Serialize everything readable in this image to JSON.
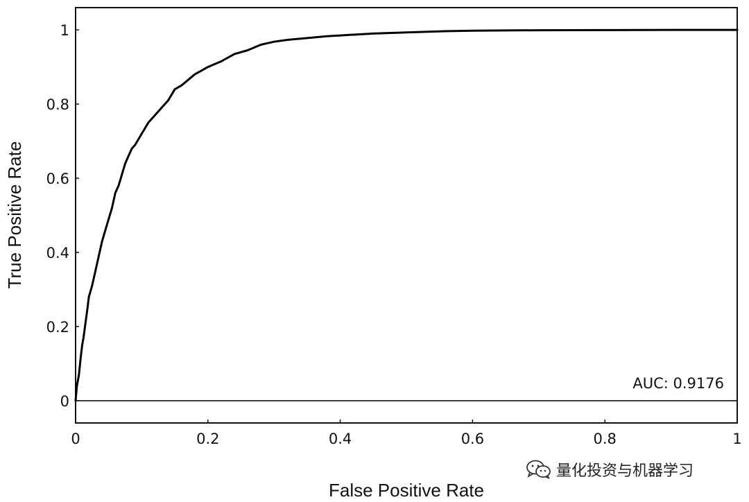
{
  "chart_data": {
    "type": "line",
    "xlabel": "False Positive Rate",
    "ylabel": "True Positive Rate",
    "xlim": [
      0,
      1
    ],
    "ylim": [
      -0.06,
      1.06
    ],
    "x_ticks": [
      0,
      0.2,
      0.4,
      0.6,
      0.8,
      1
    ],
    "y_ticks": [
      0,
      0.2,
      0.4,
      0.6,
      0.8,
      1
    ],
    "x_tick_labels": [
      "0",
      "0.2",
      "0.4",
      "0.6",
      "0.8",
      "1"
    ],
    "y_tick_labels": [
      "0",
      "0.2",
      "0.4",
      "0.6",
      "0.8",
      "1"
    ],
    "grid": false,
    "reference_line": {
      "y": 0
    },
    "annotation": "AUC: 0.9176",
    "series": [
      {
        "color": "#000000",
        "x": [
          0,
          0.002,
          0.005,
          0.008,
          0.01,
          0.012,
          0.015,
          0.018,
          0.02,
          0.025,
          0.03,
          0.035,
          0.04,
          0.045,
          0.05,
          0.055,
          0.06,
          0.065,
          0.07,
          0.075,
          0.08,
          0.085,
          0.09,
          0.1,
          0.11,
          0.12,
          0.13,
          0.14,
          0.15,
          0.16,
          0.17,
          0.18,
          0.19,
          0.2,
          0.22,
          0.24,
          0.26,
          0.28,
          0.3,
          0.32,
          0.35,
          0.38,
          0.4,
          0.45,
          0.5,
          0.55,
          0.6,
          0.7,
          0.8,
          0.9,
          1.0
        ],
        "y": [
          0,
          0.04,
          0.07,
          0.12,
          0.15,
          0.17,
          0.21,
          0.25,
          0.28,
          0.31,
          0.35,
          0.39,
          0.43,
          0.46,
          0.49,
          0.52,
          0.56,
          0.58,
          0.61,
          0.64,
          0.66,
          0.68,
          0.69,
          0.72,
          0.75,
          0.77,
          0.79,
          0.81,
          0.84,
          0.85,
          0.865,
          0.88,
          0.89,
          0.9,
          0.915,
          0.935,
          0.945,
          0.96,
          0.968,
          0.973,
          0.978,
          0.983,
          0.985,
          0.99,
          0.993,
          0.996,
          0.998,
          0.999,
          0.9995,
          1.0,
          1.0
        ]
      }
    ]
  },
  "watermark": {
    "text": "量化投资与机器学习",
    "icon": "wechat-icon"
  }
}
